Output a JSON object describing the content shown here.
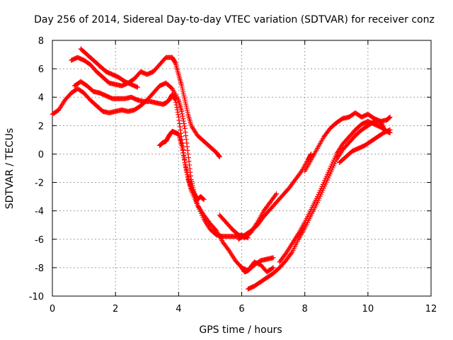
{
  "chart_data": {
    "type": "scatter",
    "title": "Day 256 of 2014, Sidereal Day-to-day VTEC variation (SDTVAR) for receiver conz",
    "xlabel": "GPS time / hours",
    "ylabel": "SDTVAR / TECUs",
    "xlim": [
      0,
      12
    ],
    "ylim": [
      -10,
      8
    ],
    "xticks": [
      0,
      2,
      4,
      6,
      8,
      10,
      12
    ],
    "yticks": [
      -10,
      -8,
      -6,
      -4,
      -2,
      0,
      2,
      4,
      6,
      8
    ],
    "xtick_labels": [
      "0",
      "2",
      "4",
      "6",
      "8",
      "10",
      "12"
    ],
    "ytick_labels": [
      "-10",
      "-8",
      "-6",
      "-4",
      "-2",
      "0",
      "2",
      "4",
      "6",
      "8"
    ],
    "grid": true,
    "marker": "plus",
    "color": "#ff0000",
    "series": [
      {
        "name": "arc-1",
        "x": [
          0.6,
          0.8,
          1.0,
          1.2,
          1.4,
          1.6,
          1.8,
          2.0,
          2.2,
          2.4,
          2.6,
          2.8,
          3.0,
          3.2,
          3.4,
          3.6,
          3.8,
          3.9,
          4.0,
          4.1,
          4.2,
          4.3,
          4.4,
          4.6,
          4.8,
          5.0,
          5.2,
          5.3
        ],
        "y": [
          6.6,
          6.8,
          6.6,
          6.3,
          5.8,
          5.4,
          5.0,
          4.9,
          4.8,
          5.0,
          5.3,
          5.8,
          5.6,
          5.8,
          6.3,
          6.8,
          6.8,
          6.4,
          5.6,
          4.8,
          3.8,
          2.8,
          2.0,
          1.3,
          0.9,
          0.5,
          0.1,
          -0.2
        ]
      },
      {
        "name": "arc-2",
        "x": [
          0.9,
          1.1,
          1.3,
          1.5,
          1.7,
          1.9,
          2.1,
          2.3,
          2.5,
          2.7
        ],
        "y": [
          7.4,
          7.0,
          6.6,
          6.2,
          5.8,
          5.6,
          5.4,
          5.1,
          4.9,
          4.7
        ]
      },
      {
        "name": "arc-3",
        "x": [
          0.0,
          0.2,
          0.4,
          0.6,
          0.8,
          1.0,
          1.2,
          1.4,
          1.6,
          1.8,
          2.0,
          2.2,
          2.4,
          2.6,
          2.8,
          3.0,
          3.2,
          3.4,
          3.6,
          3.8,
          4.0,
          4.1,
          4.2,
          4.3,
          4.4,
          4.5,
          4.6,
          4.8,
          5.0,
          5.2,
          5.4,
          5.6,
          5.8,
          6.0,
          6.2
        ],
        "y": [
          2.8,
          3.1,
          3.8,
          4.3,
          4.6,
          4.3,
          3.8,
          3.4,
          3.0,
          2.9,
          3.0,
          3.1,
          3.0,
          3.1,
          3.4,
          3.8,
          4.3,
          4.8,
          5.0,
          4.6,
          3.8,
          3.0,
          1.8,
          0.0,
          -1.8,
          -2.8,
          -3.6,
          -4.6,
          -5.3,
          -5.7,
          -5.8,
          -5.8,
          -5.8,
          -5.7,
          -5.9
        ]
      },
      {
        "name": "arc-4",
        "x": [
          0.7,
          0.9,
          1.1,
          1.3,
          1.5,
          1.7,
          1.9,
          2.1,
          2.3,
          2.5,
          2.7,
          2.9,
          3.1,
          3.3,
          3.5,
          3.6,
          3.7,
          3.8,
          3.9,
          4.0,
          4.1,
          4.2,
          4.3,
          4.4,
          4.5,
          4.6,
          4.7,
          4.8
        ],
        "y": [
          4.8,
          5.1,
          4.8,
          4.4,
          4.3,
          4.1,
          3.9,
          3.9,
          3.9,
          4.0,
          3.8,
          3.7,
          3.7,
          3.6,
          3.5,
          3.6,
          3.8,
          4.2,
          3.8,
          2.6,
          1.0,
          -0.6,
          -1.8,
          -2.4,
          -2.8,
          -3.2,
          -3.0,
          -3.2
        ]
      },
      {
        "name": "arc-5",
        "x": [
          3.4,
          3.5,
          3.6,
          3.7,
          3.8,
          3.9,
          4.0,
          4.1,
          4.2,
          4.3,
          4.4,
          4.6,
          4.8,
          5.0,
          5.2,
          5.4,
          5.6,
          5.8,
          6.0,
          6.1,
          6.2,
          6.3,
          6.4,
          6.6,
          6.8,
          7.0
        ],
        "y": [
          0.6,
          0.8,
          0.9,
          1.3,
          1.6,
          1.5,
          1.4,
          0.6,
          -0.6,
          -1.6,
          -2.6,
          -3.6,
          -4.3,
          -4.9,
          -5.4,
          -6.2,
          -6.8,
          -7.5,
          -8.0,
          -8.3,
          -8.2,
          -8.0,
          -7.8,
          -7.5,
          -7.4,
          -7.3
        ]
      },
      {
        "name": "arc-6",
        "x": [
          5.3,
          5.5,
          5.7,
          5.9,
          6.1,
          6.3,
          6.5,
          6.7,
          6.9,
          7.1
        ],
        "y": [
          -4.3,
          -4.8,
          -5.3,
          -5.7,
          -5.9,
          -5.5,
          -4.8,
          -4.0,
          -3.4,
          -2.8
        ]
      },
      {
        "name": "arc-7",
        "x": [
          5.9,
          6.1,
          6.3,
          6.5,
          6.7,
          6.9,
          7.1,
          7.3,
          7.5,
          7.7,
          7.9,
          8.1,
          8.2
        ],
        "y": [
          -6.0,
          -5.7,
          -5.4,
          -5.0,
          -4.4,
          -3.9,
          -3.4,
          -2.9,
          -2.4,
          -1.8,
          -1.2,
          -0.4,
          0.0
        ]
      },
      {
        "name": "arc-8",
        "x": [
          6.2,
          6.4,
          6.6,
          6.8,
          7.0,
          7.2,
          7.4,
          7.6,
          7.8,
          8.0,
          8.2,
          8.4,
          8.6,
          8.8,
          9.0,
          9.2,
          9.4,
          9.6,
          9.8,
          10.0,
          10.2,
          10.4,
          10.6,
          10.7
        ],
        "y": [
          -9.5,
          -9.3,
          -9.0,
          -8.7,
          -8.4,
          -8.0,
          -7.5,
          -6.9,
          -6.0,
          -5.2,
          -4.3,
          -3.4,
          -2.4,
          -1.4,
          -0.4,
          0.3,
          0.8,
          1.3,
          1.7,
          2.0,
          2.3,
          2.3,
          2.4,
          2.6
        ]
      },
      {
        "name": "arc-9",
        "x": [
          7.2,
          7.4,
          7.6,
          7.8,
          8.0,
          8.2,
          8.4,
          8.6,
          8.8,
          9.0,
          9.2,
          9.4,
          9.6,
          9.8,
          10.0,
          10.2,
          10.4,
          10.6,
          10.7
        ],
        "y": [
          -7.6,
          -7.0,
          -6.3,
          -5.6,
          -4.8,
          -3.9,
          -3.0,
          -2.0,
          -1.0,
          0.0,
          0.7,
          1.2,
          1.7,
          2.1,
          2.3,
          2.1,
          1.9,
          1.6,
          1.5
        ]
      },
      {
        "name": "arc-10",
        "x": [
          8.0,
          8.2,
          8.4,
          8.6,
          8.8,
          9.0,
          9.2,
          9.4,
          9.6,
          9.8,
          10.0,
          10.2,
          10.4,
          10.5
        ],
        "y": [
          -1.2,
          -0.4,
          0.4,
          1.2,
          1.8,
          2.2,
          2.5,
          2.6,
          2.9,
          2.6,
          2.8,
          2.5,
          2.3,
          1.8
        ]
      },
      {
        "name": "arc-11",
        "x": [
          9.1,
          9.3,
          9.5,
          9.7,
          9.9,
          10.1,
          10.3,
          10.5,
          10.7
        ],
        "y": [
          -0.6,
          -0.2,
          0.2,
          0.4,
          0.6,
          0.9,
          1.2,
          1.5,
          1.7
        ]
      },
      {
        "name": "arc-12",
        "x": [
          6.0,
          6.2,
          6.4,
          6.6,
          6.8,
          7.0
        ],
        "y": [
          -8.0,
          -8.2,
          -7.6,
          -7.8,
          -8.3,
          -8.0
        ]
      }
    ]
  }
}
